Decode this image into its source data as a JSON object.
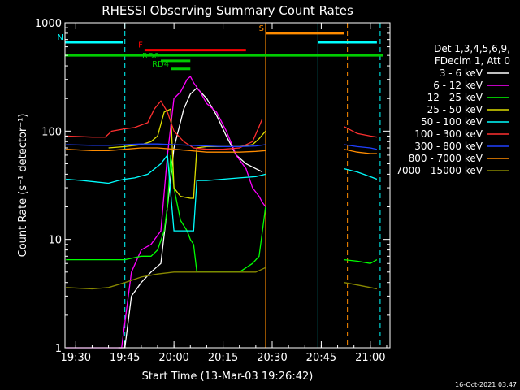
{
  "chart_data": {
    "type": "line",
    "title": "RHESSI Observing Summary Count Rates",
    "xlabel": "Start Time (13-Mar-03 19:26:42)",
    "ylabel": "Count Rate (s⁻¹ detector⁻¹)",
    "y_scale": "log",
    "ylim": [
      1,
      1000
    ],
    "xlim": [
      "19:26:42",
      "21:06:00"
    ],
    "x_ticks": [
      "19:30",
      "19:45",
      "20:00",
      "20:15",
      "20:30",
      "20:45",
      "21:00"
    ],
    "y_ticks": [
      "1",
      "10",
      "100",
      "1000"
    ],
    "legend_position": "right",
    "legend_header": [
      "Det 1,3,4,5,6,9,",
      "FDecim 1, Att 0"
    ],
    "timestamp": "16-Oct-2021 03:47",
    "grid": false,
    "series": [
      {
        "name": "3 - 6 keV",
        "color": "#ffffff",
        "x": [
          "19:43",
          "19:45",
          "19:47",
          "19:50",
          "19:53",
          "19:56",
          "19:58",
          "20:00",
          "20:03",
          "20:05",
          "20:07",
          "20:10",
          "20:13",
          "20:16",
          "20:19",
          "20:22",
          "20:25",
          "20:27"
        ],
        "y": [
          1,
          1,
          3,
          4,
          5,
          6,
          20,
          70,
          160,
          220,
          250,
          200,
          140,
          90,
          60,
          50,
          45,
          42
        ]
      },
      {
        "name": "6 - 12 keV",
        "color": "#ff00ff",
        "x": [
          "19:27",
          "19:35",
          "19:40",
          "19:44",
          "19:47",
          "19:50",
          "19:53",
          "19:56",
          "19:58",
          "20:00",
          "20:02",
          "20:04",
          "20:05",
          "20:06",
          "20:08",
          "20:10",
          "20:13",
          "20:16",
          "20:19",
          "20:22",
          "20:24",
          "20:26",
          "20:27",
          "20:28"
        ],
        "y": [
          1,
          1,
          1,
          1,
          5,
          8,
          9,
          12,
          60,
          200,
          230,
          300,
          320,
          280,
          230,
          180,
          150,
          100,
          60,
          45,
          30,
          25,
          22,
          20
        ]
      },
      {
        "name": "12 - 25 keV",
        "color": "#00ff00",
        "x": [
          "19:27",
          "19:45",
          "19:50",
          "19:53",
          "19:55",
          "19:57",
          "19:58",
          "19:59",
          "20:00",
          "20:02",
          "20:04",
          "20:05",
          "20:06",
          "20:07",
          "20:10",
          "20:15",
          "20:20",
          "20:24",
          "20:26",
          "20:28"
        ],
        "y": [
          6.5,
          6.5,
          7,
          7,
          8,
          12,
          20,
          60,
          30,
          15,
          12,
          10,
          9,
          5,
          5,
          5,
          5,
          6,
          7,
          20
        ]
      },
      {
        "name": "25 - 50 keV",
        "color": "#dddd00",
        "x": [
          "19:40",
          "19:45",
          "19:50",
          "19:53",
          "19:55",
          "19:57",
          "19:59",
          "20:00",
          "20:02",
          "20:05",
          "20:06",
          "20:07",
          "20:10",
          "20:15",
          "20:20",
          "20:24",
          "20:26",
          "20:28"
        ],
        "y": [
          70,
          72,
          75,
          80,
          90,
          150,
          160,
          30,
          25,
          24,
          24,
          70,
          72,
          72,
          72,
          75,
          85,
          100
        ]
      },
      {
        "name": "50 - 100 keV",
        "color": "#00ffff",
        "x": [
          "19:27",
          "19:32",
          "19:36",
          "19:40",
          "19:43",
          "19:45",
          "19:48",
          "19:52",
          "19:56",
          "19:58",
          "20:00",
          "20:02",
          "20:04",
          "20:06",
          "20:07",
          "20:10",
          "20:15",
          "20:20",
          "20:25",
          "20:28"
        ],
        "y": [
          36,
          35,
          34,
          33,
          35,
          36,
          37,
          40,
          50,
          60,
          12,
          12,
          12,
          12,
          35,
          35,
          36,
          37,
          38,
          40
        ]
      },
      {
        "name": "100 - 300 keV",
        "color": "#ff3030",
        "x": [
          "19:27",
          "19:35",
          "19:39",
          "19:41",
          "19:45",
          "19:48",
          "19:52",
          "19:54",
          "19:56",
          "19:58",
          "20:00",
          "20:03",
          "20:06",
          "20:10",
          "20:15",
          "20:20",
          "20:24",
          "20:26",
          "20:27"
        ],
        "y": [
          90,
          88,
          88,
          100,
          105,
          108,
          120,
          160,
          190,
          150,
          100,
          80,
          70,
          68,
          68,
          70,
          80,
          110,
          130
        ]
      },
      {
        "name": "300 - 800 keV",
        "color": "#2040ff",
        "x": [
          "19:27",
          "19:35",
          "19:40",
          "19:45",
          "19:50",
          "19:55",
          "20:00",
          "20:05",
          "20:10",
          "20:15",
          "20:20",
          "20:25",
          "20:28"
        ],
        "y": [
          75,
          74,
          74,
          75,
          76,
          76,
          75,
          74,
          73,
          72,
          72,
          73,
          75
        ]
      },
      {
        "name": "800 - 7000 keV",
        "color": "#ff8c00",
        "x": [
          "19:27",
          "19:35",
          "19:40",
          "19:45",
          "19:50",
          "19:55",
          "20:00",
          "20:05",
          "20:10",
          "20:15",
          "20:20",
          "20:25",
          "20:28"
        ],
        "y": [
          68,
          66,
          66,
          68,
          70,
          70,
          68,
          66,
          64,
          64,
          64,
          65,
          66
        ]
      },
      {
        "name": "7000 - 15000 keV",
        "color": "#888800",
        "x": [
          "19:27",
          "19:35",
          "19:40",
          "19:45",
          "19:50",
          "19:55",
          "20:00",
          "20:05",
          "20:10",
          "20:15",
          "20:20",
          "20:25",
          "20:28"
        ],
        "y": [
          3.6,
          3.5,
          3.6,
          4.0,
          4.5,
          4.8,
          5.0,
          5.0,
          5.0,
          5.0,
          5.0,
          5.0,
          5.5
        ]
      }
    ],
    "series_after_gap": [
      {
        "name": "3 - 6 keV",
        "color": "#ffffff",
        "x": [],
        "y": []
      },
      {
        "name": "6 - 12 keV",
        "color": "#ff00ff",
        "x": [],
        "y": []
      },
      {
        "name": "12 - 25 keV",
        "color": "#00ff00",
        "x": [
          "20:52",
          "20:56",
          "21:00",
          "21:02"
        ],
        "y": [
          6.5,
          6.3,
          6.0,
          6.5
        ]
      },
      {
        "name": "25 - 50 keV",
        "color": "#dddd00",
        "x": [],
        "y": []
      },
      {
        "name": "50 - 100 keV",
        "color": "#00ffff",
        "x": [
          "20:52",
          "20:56",
          "21:00",
          "21:02"
        ],
        "y": [
          45,
          42,
          38,
          36
        ]
      },
      {
        "name": "100 - 300 keV",
        "color": "#ff3030",
        "x": [
          "20:52",
          "20:56",
          "21:00",
          "21:02"
        ],
        "y": [
          110,
          95,
          90,
          88
        ]
      },
      {
        "name": "300 - 800 keV",
        "color": "#2040ff",
        "x": [
          "20:52",
          "20:56",
          "21:00",
          "21:02"
        ],
        "y": [
          75,
          72,
          70,
          68
        ]
      },
      {
        "name": "800 - 7000 keV",
        "color": "#ff8c00",
        "x": [
          "20:52",
          "20:56",
          "21:00",
          "21:02"
        ],
        "y": [
          68,
          64,
          62,
          62
        ]
      },
      {
        "name": "7000 - 15000 keV",
        "color": "#888800",
        "x": [
          "20:52",
          "20:56",
          "21:00",
          "21:02"
        ],
        "y": [
          4.0,
          3.8,
          3.6,
          3.5
        ]
      }
    ],
    "annotations": [
      {
        "label": "N",
        "color": "#00ffff",
        "style": "solid",
        "start": "19:26:42",
        "end": "19:44:30",
        "level": 660
      },
      {
        "label": "",
        "color": "#00ffff",
        "style": "solid",
        "start": "20:44",
        "end": "21:02",
        "level": 660
      },
      {
        "label": "S",
        "color": "#ff8c00",
        "style": "solid",
        "start": "20:28",
        "end": "20:52",
        "level": 800
      },
      {
        "label": "F",
        "color": "#ff0000",
        "style": "solid",
        "start": "19:51",
        "end": "20:22",
        "level": 560
      },
      {
        "label": "RD0",
        "color": "#00cc00",
        "style": "solid",
        "start": "19:56",
        "end": "20:05",
        "level": 445
      },
      {
        "label": "RD4",
        "color": "#00cc00",
        "style": "solid",
        "start": "19:59",
        "end": "20:05",
        "level": 375
      },
      {
        "label": "",
        "color": "#00cc00",
        "style": "solid",
        "start": "19:26:42",
        "end": "21:04",
        "level": 500
      }
    ],
    "vertical_markers": [
      {
        "time": "19:45",
        "color": "#00ffff",
        "style": "dashed"
      },
      {
        "time": "20:28",
        "color": "#ff8c00",
        "style": "solid"
      },
      {
        "time": "20:44",
        "color": "#00ffff",
        "style": "solid"
      },
      {
        "time": "20:53",
        "color": "#ff8c00",
        "style": "dashed"
      },
      {
        "time": "21:03",
        "color": "#00ffff",
        "style": "dashed"
      }
    ]
  }
}
